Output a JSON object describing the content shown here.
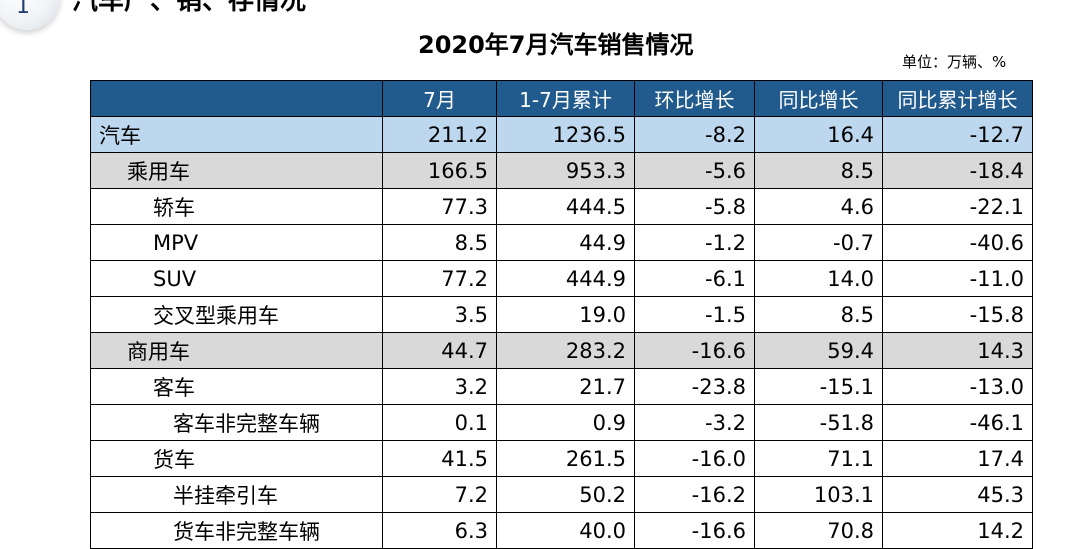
{
  "section": {
    "number": "1",
    "title": "汽车产、销、存情况"
  },
  "table": {
    "title": "2020年7月汽车销售情况",
    "unit": "单位：万辆、%",
    "headers": [
      "",
      "7月",
      "1-7月累计",
      "环比增长",
      "同比增长",
      "同比累计增长"
    ],
    "rows": [
      {
        "label": "汽车",
        "level": 1,
        "style": "total",
        "values": [
          "211.2",
          "1236.5",
          "-8.2",
          "16.4",
          "-12.7"
        ]
      },
      {
        "label": "乘用车",
        "level": 2,
        "style": "sub",
        "values": [
          "166.5",
          "953.3",
          "-5.6",
          "8.5",
          "-18.4"
        ]
      },
      {
        "label": "轿车",
        "level": 3,
        "style": "plain",
        "values": [
          "77.3",
          "444.5",
          "-5.8",
          "4.6",
          "-22.1"
        ]
      },
      {
        "label": "MPV",
        "level": 3,
        "style": "plain",
        "values": [
          "8.5",
          "44.9",
          "-1.2",
          "-0.7",
          "-40.6"
        ]
      },
      {
        "label": "SUV",
        "level": 3,
        "style": "plain",
        "values": [
          "77.2",
          "444.9",
          "-6.1",
          "14.0",
          "-11.0"
        ]
      },
      {
        "label": "交叉型乘用车",
        "level": 3,
        "style": "plain",
        "values": [
          "3.5",
          "19.0",
          "-1.5",
          "8.5",
          "-15.8"
        ]
      },
      {
        "label": "商用车",
        "level": 2,
        "style": "sub",
        "values": [
          "44.7",
          "283.2",
          "-16.6",
          "59.4",
          "14.3"
        ]
      },
      {
        "label": "客车",
        "level": 3,
        "style": "plain",
        "values": [
          "3.2",
          "21.7",
          "-23.8",
          "-15.1",
          "-13.0"
        ]
      },
      {
        "label": "客车非完整车辆",
        "level": 4,
        "style": "plain",
        "values": [
          "0.1",
          "0.9",
          "-3.2",
          "-51.8",
          "-46.1"
        ]
      },
      {
        "label": "货车",
        "level": 3,
        "style": "plain",
        "values": [
          "41.5",
          "261.5",
          "-16.0",
          "71.1",
          "17.4"
        ]
      },
      {
        "label": "半挂牵引车",
        "level": 4,
        "style": "plain",
        "values": [
          "7.2",
          "50.2",
          "-16.2",
          "103.1",
          "45.3"
        ]
      },
      {
        "label": "货车非完整车辆",
        "level": 4,
        "style": "plain",
        "values": [
          "6.3",
          "40.0",
          "-16.6",
          "70.8",
          "14.2"
        ]
      }
    ]
  }
}
